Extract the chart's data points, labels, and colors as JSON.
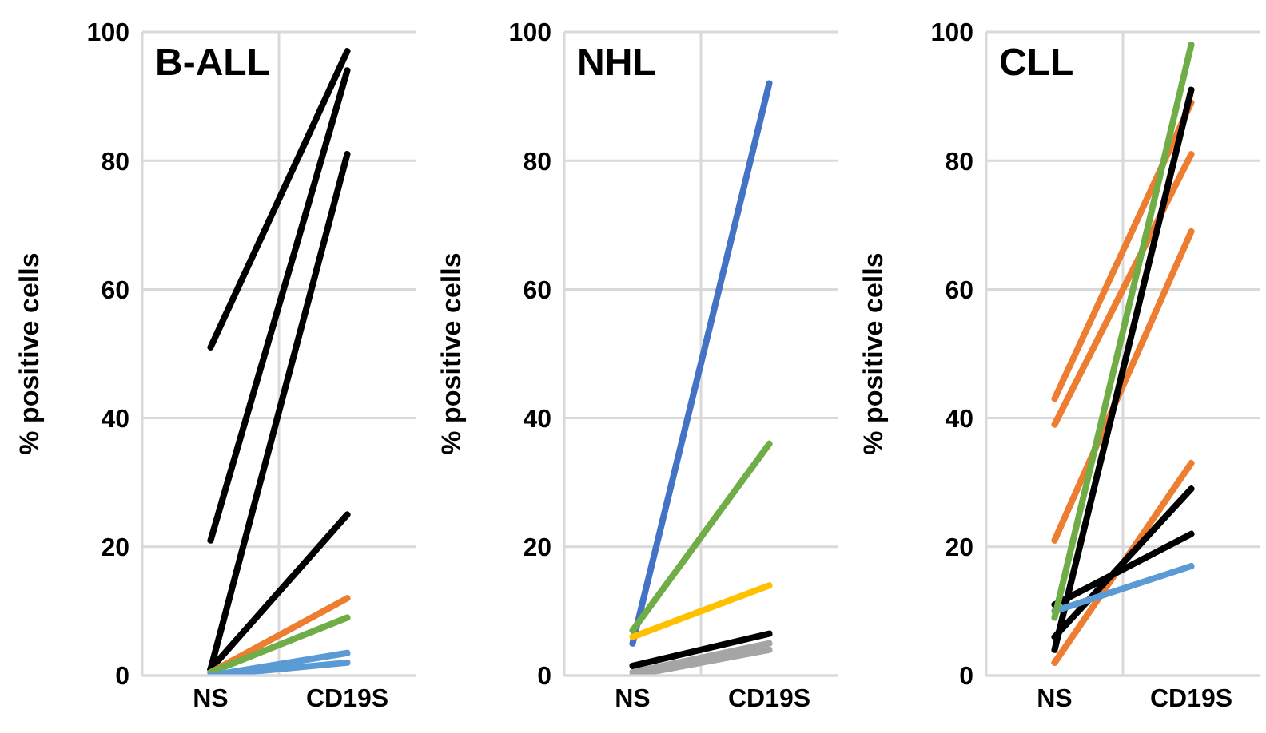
{
  "chart_data": [
    {
      "type": "line",
      "title": "B-ALL",
      "ylabel": "% positive cells",
      "categories": [
        "NS",
        "CD19S"
      ],
      "ylim": [
        0,
        100
      ],
      "yticks": [
        0,
        20,
        40,
        60,
        80,
        100
      ],
      "grid": true,
      "series": [
        {
          "color": "#000000",
          "values": [
            51,
            97
          ]
        },
        {
          "color": "#000000",
          "values": [
            21,
            94
          ]
        },
        {
          "color": "#000000",
          "values": [
            1,
            81
          ]
        },
        {
          "color": "#000000",
          "values": [
            1,
            25
          ]
        },
        {
          "color": "#ed7d31",
          "values": [
            0.5,
            12
          ]
        },
        {
          "color": "#70ad47",
          "values": [
            0.5,
            9
          ]
        },
        {
          "color": "#5b9bd5",
          "values": [
            0,
            3.5
          ]
        },
        {
          "color": "#5b9bd5",
          "values": [
            0,
            2
          ]
        }
      ]
    },
    {
      "type": "line",
      "title": "NHL",
      "ylabel": "% positive cells",
      "categories": [
        "NS",
        "CD19S"
      ],
      "ylim": [
        0,
        100
      ],
      "yticks": [
        0,
        20,
        40,
        60,
        80,
        100
      ],
      "grid": true,
      "series": [
        {
          "color": "#4472c4",
          "values": [
            5,
            92
          ]
        },
        {
          "color": "#70ad47",
          "values": [
            7,
            36
          ]
        },
        {
          "color": "#ffc000",
          "values": [
            6,
            14
          ]
        },
        {
          "color": "#a5a5a5",
          "values": [
            0,
            4
          ]
        },
        {
          "color": "#a5a5a5",
          "values": [
            0.5,
            5
          ]
        },
        {
          "color": "#000000",
          "values": [
            1.5,
            6.5
          ]
        }
      ]
    },
    {
      "type": "line",
      "title": "CLL",
      "ylabel": "% positive cells",
      "categories": [
        "NS",
        "CD19S"
      ],
      "ylim": [
        0,
        100
      ],
      "yticks": [
        0,
        20,
        40,
        60,
        80,
        100
      ],
      "grid": true,
      "series": [
        {
          "color": "#ed7d31",
          "values": [
            43,
            89
          ]
        },
        {
          "color": "#ed7d31",
          "values": [
            39,
            81
          ]
        },
        {
          "color": "#ed7d31",
          "values": [
            21,
            69
          ]
        },
        {
          "color": "#ed7d31",
          "values": [
            2,
            33
          ]
        },
        {
          "color": "#000000",
          "values": [
            4,
            91
          ]
        },
        {
          "color": "#000000",
          "values": [
            11,
            22
          ]
        },
        {
          "color": "#000000",
          "values": [
            6,
            29
          ]
        },
        {
          "color": "#5b9bd5",
          "values": [
            10,
            17
          ]
        },
        {
          "color": "#70ad47",
          "values": [
            9,
            98
          ]
        }
      ]
    }
  ]
}
